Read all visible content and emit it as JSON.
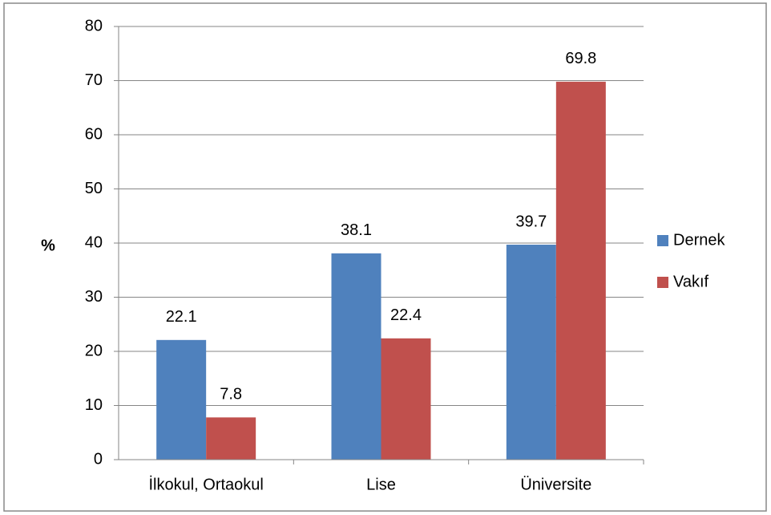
{
  "chart_data": {
    "type": "bar",
    "ylabel": "%",
    "categories": [
      "İlkokul, Ortaokul",
      "Lise",
      "Üniversite"
    ],
    "series": [
      {
        "name": "Dernek",
        "color": "#4f81bd",
        "values": [
          22.1,
          38.1,
          39.7
        ]
      },
      {
        "name": "Vakıf",
        "color": "#c0504d",
        "values": [
          7.8,
          22.4,
          69.8
        ]
      }
    ],
    "ylim": [
      0,
      80
    ],
    "yticks": [
      0,
      10,
      20,
      30,
      40,
      50,
      60,
      70,
      80
    ],
    "grid": true,
    "legend": "right"
  }
}
